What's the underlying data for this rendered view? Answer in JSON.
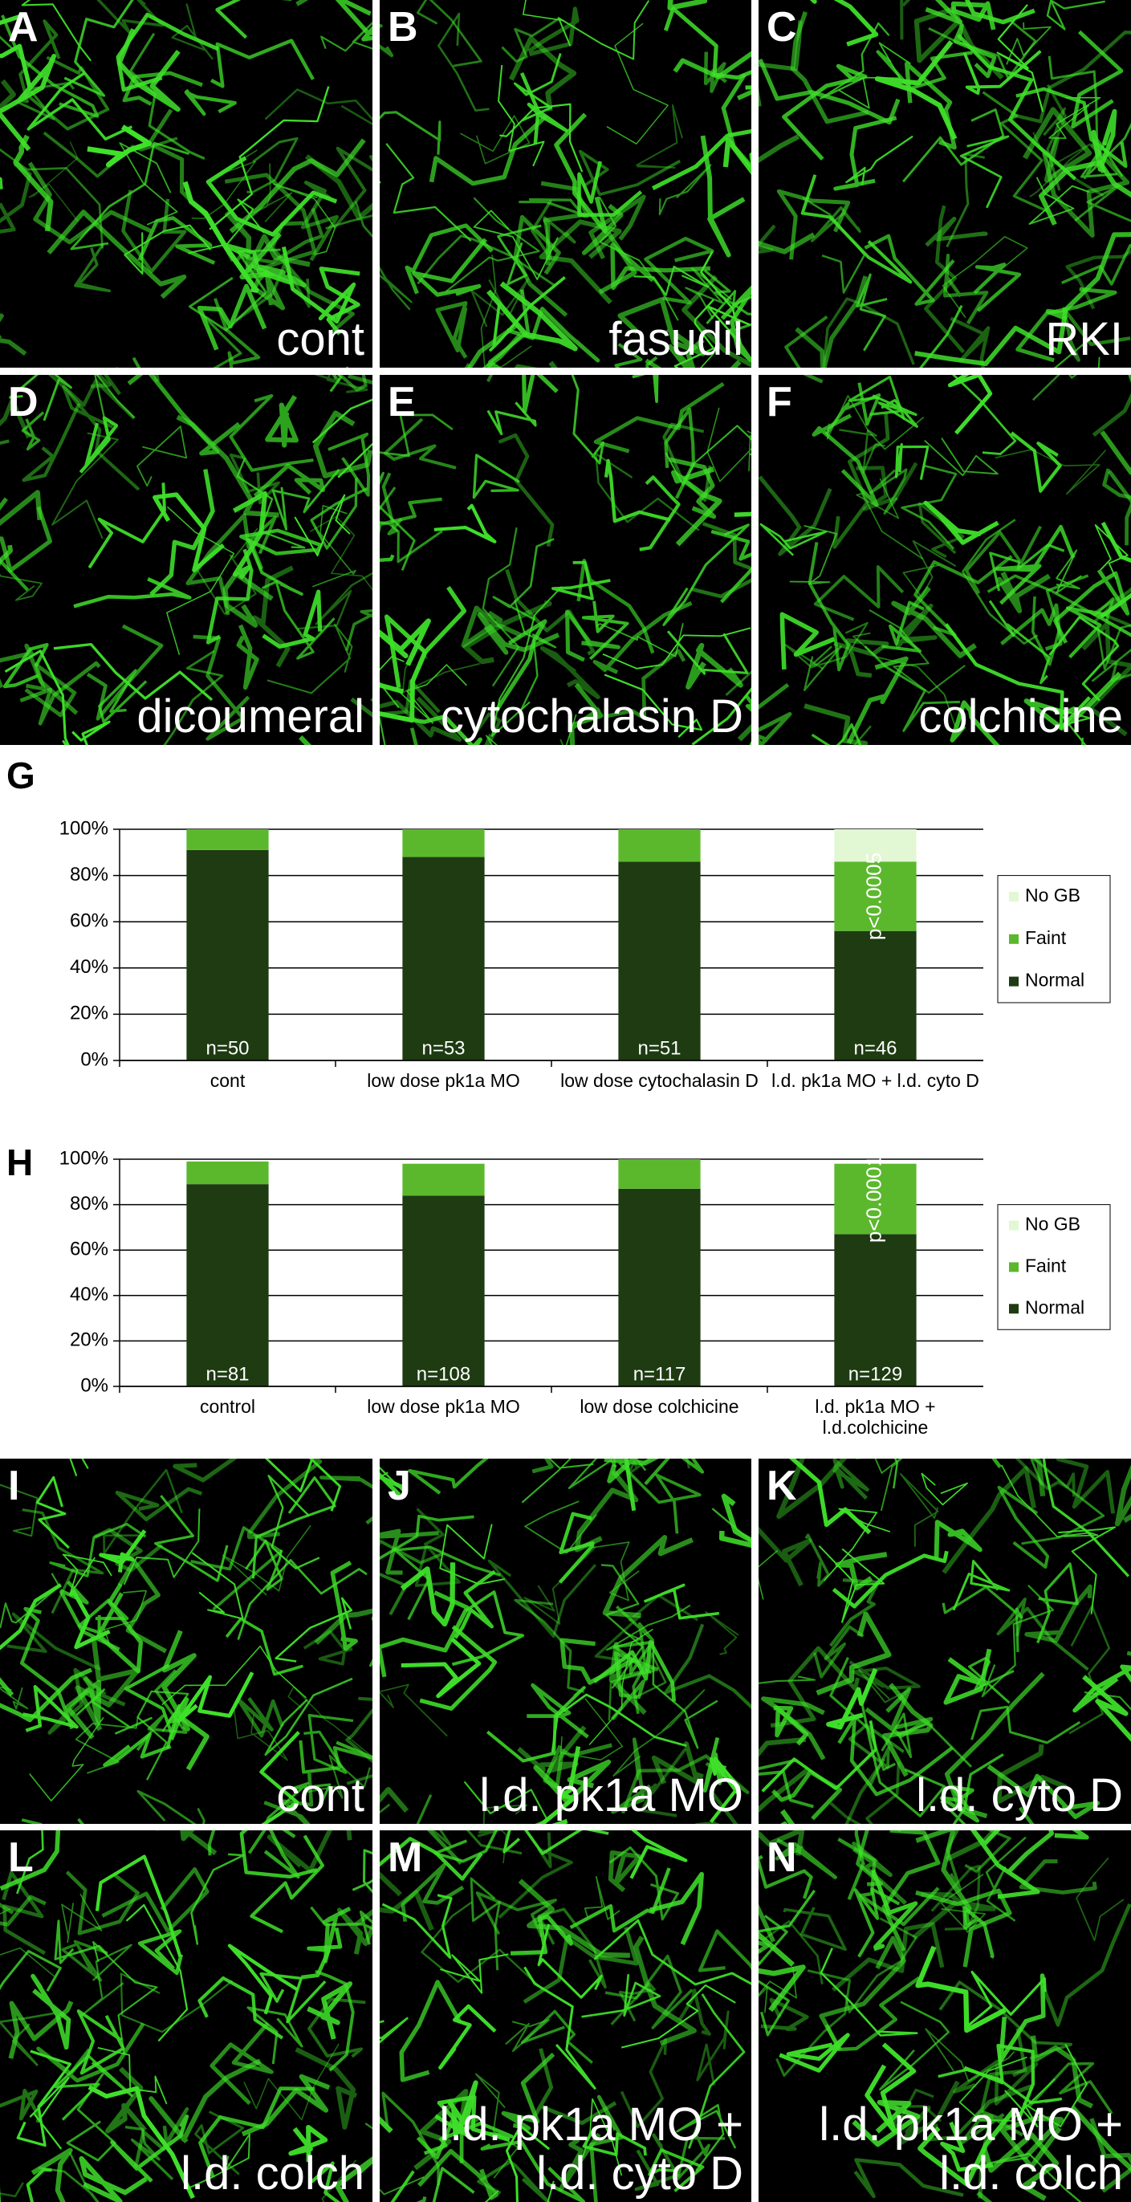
{
  "panels": [
    {
      "label": "A",
      "caption": "cont"
    },
    {
      "label": "B",
      "caption": "fasudil"
    },
    {
      "label": "C",
      "caption": "RKI"
    },
    {
      "label": "D",
      "caption": "dicoumeral"
    },
    {
      "label": "E",
      "caption": "cytochalasin D"
    },
    {
      "label": "F",
      "caption": "colchicine"
    },
    {
      "label": "I",
      "caption": "cont"
    },
    {
      "label": "J",
      "caption": "l.d. pk1a MO"
    },
    {
      "label": "K",
      "caption": "l.d. cyto D"
    },
    {
      "label": "L",
      "caption": "l.d. colch"
    },
    {
      "label": "M",
      "caption": "l.d. pk1a MO + l.d. cyto D"
    },
    {
      "label": "N",
      "caption": "l.d. pk1a MO + l.d. colch"
    }
  ],
  "chart_data": [
    {
      "type": "bar",
      "stacked": true,
      "label": "G",
      "categories": [
        "cont",
        "low dose pk1a MO",
        "low dose cytochalasin D",
        "l.d. pk1a MO + l.d. cyto D"
      ],
      "series": [
        {
          "name": "Normal",
          "color": "#1e3b12",
          "values": [
            91,
            88,
            86,
            56
          ]
        },
        {
          "name": "Faint",
          "color": "#5bb82c",
          "values": [
            9,
            12,
            14,
            30
          ]
        },
        {
          "name": "No GB",
          "color": "#e2f7d4",
          "values": [
            0,
            0,
            0,
            14
          ]
        }
      ],
      "n_labels": [
        "n=50",
        "n=53",
        "n=51",
        "n=46"
      ],
      "p_label": "p<0.0005",
      "ylim": [
        0,
        100
      ],
      "yticks": [
        {
          "value": 0,
          "label": "0%"
        },
        {
          "value": 20,
          "label": "20%"
        },
        {
          "value": 40,
          "label": "40%"
        },
        {
          "value": 60,
          "label": "60%"
        },
        {
          "value": 80,
          "label": "80%"
        },
        {
          "value": 100,
          "label": "100%"
        }
      ],
      "grid": true,
      "legend": "right"
    },
    {
      "type": "bar",
      "stacked": true,
      "label": "H",
      "categories": [
        "control",
        "low dose pk1a MO",
        "low dose colchicine",
        "l.d. pk1a MO + l.d.colchicine"
      ],
      "series": [
        {
          "name": "Normal",
          "color": "#1e3b12",
          "values": [
            89,
            84,
            87,
            67
          ]
        },
        {
          "name": "Faint",
          "color": "#5bb82c",
          "values": [
            10,
            14,
            13,
            31
          ]
        },
        {
          "name": "No GB",
          "color": "#e2f7d4",
          "values": [
            0,
            0,
            0,
            0
          ]
        }
      ],
      "n_labels": [
        "n=81",
        "n=108",
        "n=117",
        "n=129"
      ],
      "p_label": "p<0.0001",
      "ylim": [
        0,
        100
      ],
      "yticks": [
        {
          "value": 0,
          "label": "0%"
        },
        {
          "value": 20,
          "label": "20%"
        },
        {
          "value": 40,
          "label": "40%"
        },
        {
          "value": 60,
          "label": "60%"
        },
        {
          "value": 80,
          "label": "80%"
        },
        {
          "value": 100,
          "label": "100%"
        }
      ],
      "grid": true,
      "legend": "right"
    }
  ]
}
